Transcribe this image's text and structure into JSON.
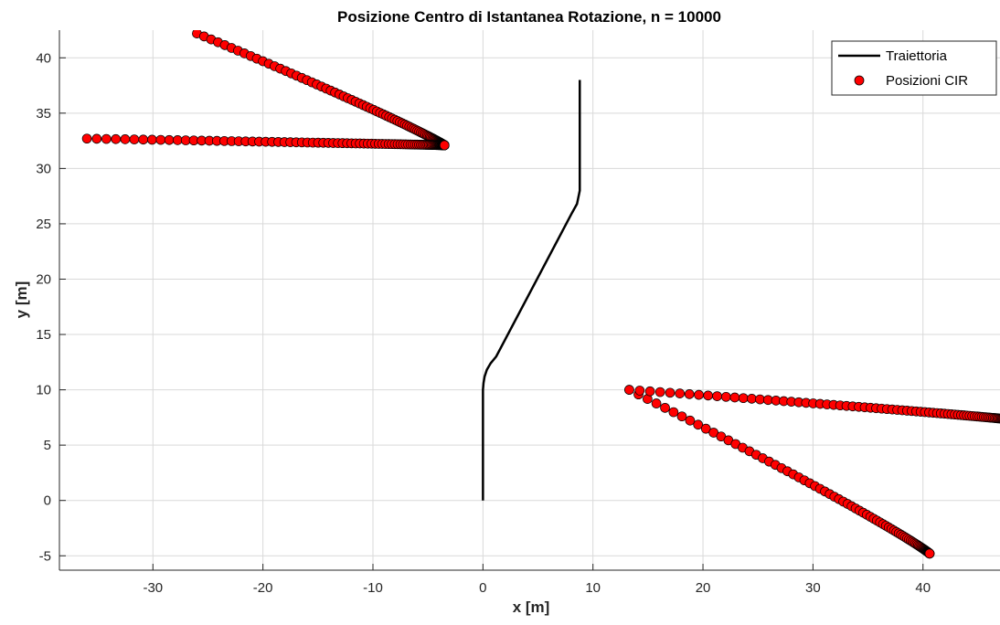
{
  "chart_data": {
    "type": "scatter",
    "title": "Posizione Centro di Istantanea Rotazione, n = 10000",
    "xlabel": "x [m]",
    "ylabel": "y [m]",
    "xlim": [
      -38.5,
      47
    ],
    "ylim": [
      -6.3,
      42.5
    ],
    "xticks": [
      -30,
      -20,
      -10,
      0,
      10,
      20,
      30,
      40
    ],
    "yticks": [
      -5,
      0,
      5,
      10,
      15,
      20,
      25,
      30,
      35,
      40
    ],
    "xtick_labels": [
      "-30",
      "-20",
      "-10",
      "0",
      "10",
      "20",
      "30",
      "40"
    ],
    "ytick_labels": [
      "-5",
      "0",
      "5",
      "10",
      "15",
      "20",
      "25",
      "30",
      "35",
      "40"
    ],
    "grid": true,
    "legend_position": "top-right",
    "colors": {
      "trajectory": "#000000",
      "cir_fill": "#ff0000",
      "cir_edge": "#000000",
      "grid": "#d9d9d9",
      "axes": "#262626"
    },
    "series": [
      {
        "name": "Traiettoria",
        "kind": "line",
        "x": [
          0,
          0,
          0,
          0.05,
          0.15,
          0.35,
          0.7,
          1.2,
          8.1,
          8.55,
          8.8,
          8.8
        ],
        "y": [
          0,
          5,
          10,
          10.6,
          11.2,
          11.8,
          12.4,
          13,
          26,
          26.8,
          28,
          38
        ]
      },
      {
        "name": "Posizioni CIR",
        "kind": "markers",
        "branches": [
          {
            "from": [
              -26,
              42.2
            ],
            "to": [
              -3.5,
              32.1
            ],
            "count": 90,
            "power": 2.6
          },
          {
            "from": [
              -36,
              32.7
            ],
            "to": [
              -3.5,
              32.1
            ],
            "count": 95,
            "power": 2.6
          },
          {
            "from": [
              13.3,
              10
            ],
            "to": [
              40.6,
              -4.8
            ],
            "count": 85,
            "power": 2.6
          },
          {
            "from": [
              13.3,
              10
            ],
            "to": [
              48,
              7.3
            ],
            "count": 95,
            "power": 2.6
          }
        ]
      }
    ]
  }
}
